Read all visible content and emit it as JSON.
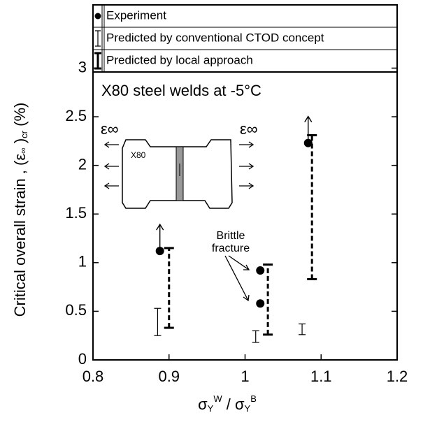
{
  "chart_data": {
    "type": "scatter",
    "title": "X80 steel welds at -5°C",
    "xlabel": [
      "σ",
      "Y",
      "W",
      " / σ",
      "Y",
      "B"
    ],
    "ylabel": [
      "Critical overall strain , (ε",
      "∞",
      " )",
      "cr",
      " (%)"
    ],
    "xlim": [
      0.8,
      1.2
    ],
    "xticks": [
      0.8,
      0.9,
      1.0,
      1.1,
      1.2
    ],
    "ylim": [
      0,
      3.65
    ],
    "yticks": [
      0.0,
      0.5,
      1.0,
      1.5,
      2.0,
      2.5,
      3.0
    ],
    "series": [
      {
        "name": "Experiment",
        "kind": "point",
        "color": "#000000",
        "x": [
          0.888,
          1.02,
          1.02,
          1.083
        ],
        "values": [
          1.12,
          0.92,
          0.58,
          2.23
        ],
        "arrow": [
          true,
          false,
          false,
          true
        ]
      },
      {
        "name": "Predicted by conventional CTOD concept",
        "kind": "range-thin",
        "color": "#000000",
        "x": [
          0.885,
          1.014,
          1.075
        ],
        "low": [
          0.25,
          0.18,
          0.26
        ],
        "high": [
          0.53,
          0.3,
          0.37
        ]
      },
      {
        "name": "Predicted by local approach",
        "kind": "range-thick",
        "color": "#000000",
        "x": [
          0.9,
          1.03,
          1.088
        ],
        "low": [
          0.33,
          0.26,
          0.83
        ],
        "high": [
          1.15,
          0.98,
          2.31
        ]
      }
    ],
    "annotations": {
      "brittle": [
        "Brittle",
        "fracture"
      ],
      "strain": "ε∞",
      "specimen": "X80"
    }
  }
}
